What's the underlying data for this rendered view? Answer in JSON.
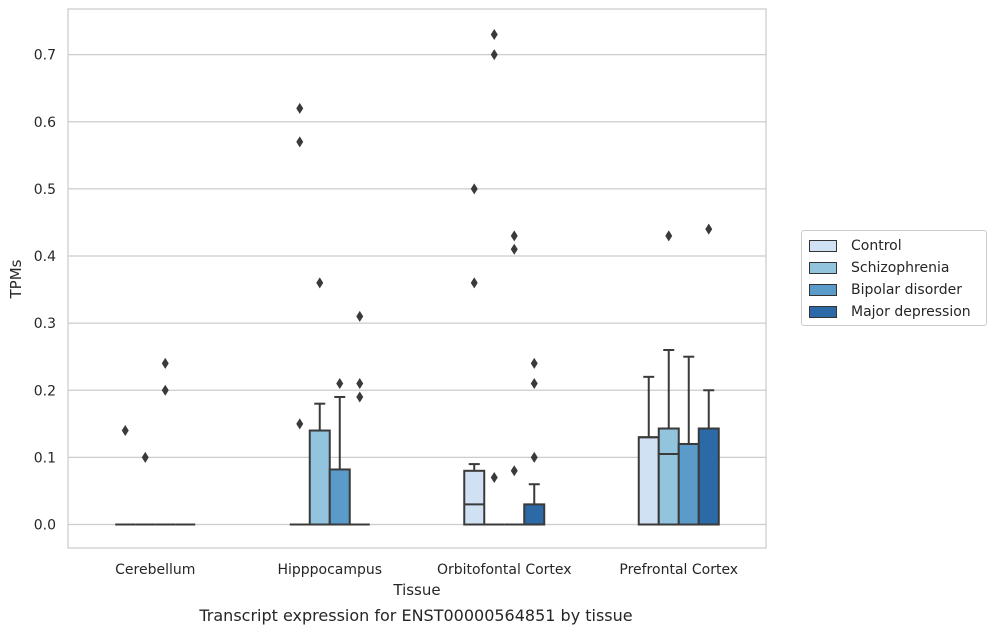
{
  "chart_data": {
    "type": "box",
    "xlabel": "Tissue",
    "ylabel": "TPMs",
    "caption": "Transcript expression for ENST00000564851 by tissue",
    "ylim": [
      -0.035,
      0.768
    ],
    "yticks": [
      "0.0",
      "0.1",
      "0.2",
      "0.3",
      "0.4",
      "0.5",
      "0.6",
      "0.7"
    ],
    "grid": "horizontal",
    "legend_position": "right",
    "categories": [
      "Cerebellum",
      "Hipppocampus",
      "Orbitofontal Cortex",
      "Prefrontal Cortex"
    ],
    "series": [
      {
        "name": "Control",
        "color": "#cfe1f2",
        "boxes": [
          {
            "q1": 0,
            "median": 0,
            "q3": 0,
            "whislo": 0,
            "whishi": 0,
            "fliers": [
              0.14
            ]
          },
          {
            "q1": 0,
            "median": 0,
            "q3": 0,
            "whislo": 0,
            "whishi": 0,
            "fliers": [
              0.62,
              0.57,
              0.15
            ]
          },
          {
            "q1": 0,
            "median": 0.03,
            "q3": 0.08,
            "whislo": 0,
            "whishi": 0.09,
            "fliers": [
              0.5,
              0.36
            ]
          },
          {
            "q1": 0,
            "median": 0.13,
            "q3": 0.13,
            "whislo": 0,
            "whishi": 0.22,
            "fliers": []
          }
        ]
      },
      {
        "name": "Schizophrenia",
        "color": "#93c4de",
        "boxes": [
          {
            "q1": 0,
            "median": 0,
            "q3": 0,
            "whislo": 0,
            "whishi": 0,
            "fliers": [
              0.1
            ]
          },
          {
            "q1": 0,
            "median": 0,
            "q3": 0.14,
            "whislo": 0,
            "whishi": 0.18,
            "fliers": [
              0.36
            ]
          },
          {
            "q1": 0,
            "median": 0,
            "q3": 0,
            "whislo": 0,
            "whishi": 0,
            "fliers": [
              0.73,
              0.7,
              0.07
            ]
          },
          {
            "q1": 0,
            "median": 0.105,
            "q3": 0.143,
            "whislo": 0,
            "whishi": 0.26,
            "fliers": [
              0.43
            ]
          }
        ]
      },
      {
        "name": "Bipolar disorder",
        "color": "#5b9bc9",
        "boxes": [
          {
            "q1": 0,
            "median": 0,
            "q3": 0,
            "whislo": 0,
            "whishi": 0,
            "fliers": [
              0.24,
              0.2
            ]
          },
          {
            "q1": 0,
            "median": 0,
            "q3": 0.082,
            "whislo": 0,
            "whishi": 0.19,
            "fliers": [
              0.21
            ]
          },
          {
            "q1": 0,
            "median": 0,
            "q3": 0,
            "whislo": 0,
            "whishi": 0,
            "fliers": [
              0.43,
              0.41,
              0.08
            ]
          },
          {
            "q1": 0,
            "median": 0.12,
            "q3": 0.12,
            "whislo": 0,
            "whishi": 0.25,
            "fliers": []
          }
        ]
      },
      {
        "name": "Major depression",
        "color": "#2b6aa6",
        "boxes": [
          {
            "q1": 0,
            "median": 0,
            "q3": 0,
            "whislo": 0,
            "whishi": 0,
            "fliers": []
          },
          {
            "q1": 0,
            "median": 0,
            "q3": 0,
            "whislo": 0,
            "whishi": 0,
            "fliers": [
              0.31,
              0.21,
              0.19
            ]
          },
          {
            "q1": 0,
            "median": 0,
            "q3": 0.03,
            "whislo": 0,
            "whishi": 0.06,
            "fliers": [
              0.24,
              0.21,
              0.1
            ]
          },
          {
            "q1": 0,
            "median": 0.143,
            "q3": 0.143,
            "whislo": 0,
            "whishi": 0.2,
            "fliers": [
              0.44
            ]
          }
        ]
      }
    ]
  },
  "legend": {
    "items": [
      {
        "label": "Control",
        "color": "#cfe1f2"
      },
      {
        "label": "Schizophrenia",
        "color": "#93c4de"
      },
      {
        "label": "Bipolar disorder",
        "color": "#5b9bc9"
      },
      {
        "label": "Major depression",
        "color": "#2b6aa6"
      }
    ]
  }
}
